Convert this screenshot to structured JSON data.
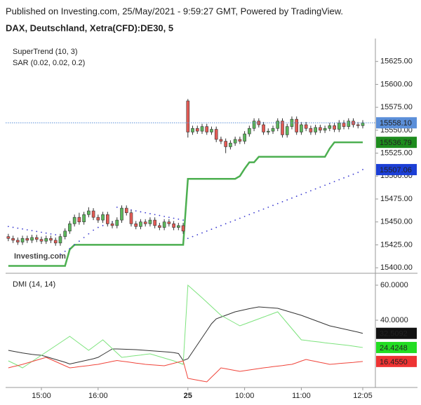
{
  "header": "Published on Investing.com, 25/May/2021 - 9:59:27 GMT, Powered by TradingView.",
  "chart_data": [
    {
      "type": "candlestick",
      "title": "DAX, Deutschland, Xetra(CFD):DE30, 5",
      "watermark": "Investing.com",
      "up_color": "#5cb85c",
      "down_color": "#e45b55",
      "ohlc": [
        [
          15434,
          15437,
          15429,
          15432
        ],
        [
          15432,
          15435,
          15427,
          15430
        ],
        [
          15430,
          15433,
          15425,
          15428
        ],
        [
          15428,
          15435,
          15425,
          15432
        ],
        [
          15432,
          15435,
          15427,
          15430
        ],
        [
          15430,
          15436,
          15427,
          15433
        ],
        [
          15433,
          15436,
          15428,
          15431
        ],
        [
          15431,
          15434,
          15426,
          15429
        ],
        [
          15429,
          15435,
          15426,
          15432
        ],
        [
          15432,
          15435,
          15427,
          15430
        ],
        [
          15430,
          15433,
          15424,
          15427
        ],
        [
          15427,
          15437,
          15424,
          15434
        ],
        [
          15434,
          15443,
          15431,
          15440
        ],
        [
          15440,
          15451,
          15437,
          15448
        ],
        [
          15448,
          15458,
          15445,
          15455
        ],
        [
          15455,
          15460,
          15447,
          15450
        ],
        [
          15450,
          15461,
          15447,
          15458
        ],
        [
          15458,
          15466,
          15455,
          15462
        ],
        [
          15462,
          15465,
          15452,
          15455
        ],
        [
          15455,
          15458,
          15449,
          15452
        ],
        [
          15452,
          15461,
          15449,
          15458
        ],
        [
          15458,
          15461,
          15445,
          15448
        ],
        [
          15448,
          15451,
          15443,
          15446
        ],
        [
          15446,
          15455,
          15443,
          15452
        ],
        [
          15452,
          15468,
          15449,
          15465
        ],
        [
          15465,
          15468,
          15457,
          15460
        ],
        [
          15460,
          15463,
          15445,
          15448
        ],
        [
          15448,
          15451,
          15442,
          15445
        ],
        [
          15445,
          15453,
          15442,
          15450
        ],
        [
          15450,
          15453,
          15445,
          15448
        ],
        [
          15448,
          15455,
          15445,
          15452
        ],
        [
          15452,
          15455,
          15443,
          15446
        ],
        [
          15446,
          15449,
          15441,
          15444
        ],
        [
          15444,
          15453,
          15441,
          15450
        ],
        [
          15450,
          15453,
          15445,
          15448
        ],
        [
          15448,
          15451,
          15441,
          15444
        ],
        [
          15444,
          15449,
          15441,
          15446
        ],
        [
          15446,
          15449,
          15437,
          15440
        ],
        [
          15582,
          15584,
          15542,
          15548
        ],
        [
          15548,
          15555,
          15545,
          15552
        ],
        [
          15552,
          15555,
          15546,
          15549
        ],
        [
          15549,
          15557,
          15546,
          15554
        ],
        [
          15554,
          15557,
          15545,
          15548
        ],
        [
          15548,
          15554,
          15545,
          15551
        ],
        [
          15551,
          15554,
          15537,
          15540
        ],
        [
          15540,
          15543,
          15535,
          15538
        ],
        [
          15538,
          15541,
          15525,
          15532
        ],
        [
          15532,
          15539,
          15529,
          15536
        ],
        [
          15536,
          15543,
          15533,
          15540
        ],
        [
          15540,
          15543,
          15535,
          15538
        ],
        [
          15538,
          15549,
          15535,
          15546
        ],
        [
          15546,
          15555,
          15543,
          15552
        ],
        [
          15552,
          15563,
          15549,
          15560
        ],
        [
          15560,
          15563,
          15553,
          15556
        ],
        [
          15556,
          15559,
          15545,
          15548
        ],
        [
          15548,
          15552,
          15545,
          15549
        ],
        [
          15549,
          15555,
          15546,
          15552
        ],
        [
          15552,
          15563,
          15549,
          15560
        ],
        [
          15560,
          15563,
          15542,
          15545
        ],
        [
          15545,
          15557,
          15542,
          15554
        ],
        [
          15554,
          15565,
          15551,
          15562
        ],
        [
          15562,
          15565,
          15545,
          15548
        ],
        [
          15548,
          15559,
          15545,
          15556
        ],
        [
          15556,
          15559,
          15549,
          15552
        ],
        [
          15552,
          15555,
          15545,
          15548
        ],
        [
          15548,
          15556,
          15545,
          15553
        ],
        [
          15553,
          15556,
          15547,
          15550
        ],
        [
          15550,
          15555,
          15547,
          15552
        ],
        [
          15552,
          15558,
          15549,
          15555
        ],
        [
          15555,
          15558,
          15548,
          15551
        ],
        [
          15551,
          15561,
          15548,
          15558
        ],
        [
          15558,
          15561,
          15551,
          15554
        ],
        [
          15554,
          15563,
          15551,
          15560
        ],
        [
          15560,
          15563,
          15553,
          15556
        ],
        [
          15556,
          15559,
          15552,
          15555
        ],
        [
          15555,
          15561,
          15552,
          15558.1
        ]
      ],
      "last_label": "15558.10",
      "last_color": "#5b8fd9",
      "series": [
        {
          "name": "SuperTrend (10, 3)",
          "color": "#4caf50",
          "style": "line",
          "last_label": "15536.79",
          "label_color": "#1e8c1e",
          "values": [
            15402,
            15402,
            15402,
            15402,
            15402,
            15402,
            15402,
            15402,
            15402,
            15402,
            15402,
            15402,
            15402,
            15420,
            15425,
            15425,
            15425,
            15425,
            15425,
            15425,
            15425,
            15425,
            15425,
            15425,
            15425,
            15425,
            15425,
            15425,
            15425,
            15425,
            15425,
            15425,
            15425,
            15425,
            15425,
            15425,
            15425,
            15425,
            15497,
            15497,
            15497,
            15497,
            15497,
            15497,
            15497,
            15497,
            15497,
            15497,
            15497,
            15500,
            15508,
            15515,
            15515,
            15521,
            15521,
            15521,
            15521,
            15521,
            15521,
            15521,
            15521,
            15521,
            15521,
            15521,
            15521,
            15521,
            15521,
            15521,
            15530,
            15536.79,
            15536.79,
            15536.79,
            15536.79,
            15536.79,
            15536.79,
            15536.79
          ]
        },
        {
          "name": "SAR (0.02, 0.02, 0.2)",
          "color": "#3a3ad0",
          "style": "dots",
          "last_label": "15507.06",
          "label_color": "#1c3fd6",
          "values": [
            15445,
            15444.1,
            15443.2,
            15442.3,
            15441.4,
            15440.5,
            15439.6,
            15438.7,
            15437.8,
            15436.9,
            15436,
            15415,
            15418,
            15421,
            15425,
            15429,
            15433,
            15437,
            15441,
            15444,
            15446,
            15448,
            15450,
            15466,
            15465,
            15464,
            15463,
            15462,
            15461,
            15460,
            15459,
            15458,
            15457,
            15456,
            15455,
            15454,
            15453,
            15452,
            15432,
            15434,
            15436,
            15438,
            15440,
            15442,
            15444,
            15446,
            15448,
            15450,
            15452,
            15454,
            15456,
            15458,
            15460,
            15462,
            15464,
            15466,
            15468,
            15470,
            15472,
            15474,
            15476,
            15478,
            15480,
            15482,
            15484,
            15486,
            15488,
            15490,
            15492,
            15494,
            15496,
            15498,
            15500,
            15502,
            15504,
            15507.06
          ]
        }
      ],
      "ylim": [
        15394,
        15650
      ],
      "yticks": [
        {
          "value": 15400,
          "label": "15400.00"
        },
        {
          "value": 15425,
          "label": "15425.00"
        },
        {
          "value": 15450,
          "label": "15450.00"
        },
        {
          "value": 15475,
          "label": "15475.00"
        },
        {
          "value": 15500,
          "label": "15500.00"
        },
        {
          "value": 15525,
          "label": "15525.00"
        },
        {
          "value": 15550,
          "label": "15550.00"
        },
        {
          "value": 15575,
          "label": "15575.00"
        },
        {
          "value": 15600,
          "label": "15600.00"
        },
        {
          "value": 15625,
          "label": "15625.00"
        }
      ],
      "legend": "top-left"
    },
    {
      "type": "line",
      "title": "DMI (14, 14)",
      "categories": [
        null,
        null,
        null,
        null,
        null,
        null,
        null,
        "15:00",
        null,
        null,
        null,
        null,
        null,
        null,
        null,
        null,
        null,
        null,
        null,
        "16:00",
        null,
        null,
        null,
        null,
        null,
        null,
        null,
        null,
        null,
        null,
        null,
        null,
        null,
        null,
        null,
        null,
        null,
        null,
        "25",
        null,
        null,
        null,
        null,
        null,
        null,
        null,
        null,
        null,
        null,
        null,
        "10:00",
        null,
        null,
        null,
        null,
        null,
        null,
        null,
        null,
        null,
        null,
        null,
        "11:00",
        null,
        null,
        null,
        null,
        null,
        null,
        null,
        null,
        null,
        null,
        null,
        null,
        "12:05"
      ],
      "series": [
        {
          "color": "#333333",
          "last_label": "32.5092",
          "label_color": "#111111",
          "label_text": "#ffffff",
          "values": [
            22.8,
            22.3,
            21.8,
            21.3,
            20.9,
            20.5,
            20.2,
            20,
            19.2,
            18.4,
            17.6,
            16.8,
            16,
            15,
            15.6,
            16.2,
            16.8,
            17.4,
            18,
            18.8,
            20.4,
            22,
            23.6,
            23.6,
            23.5,
            23.4,
            23.3,
            23.2,
            23,
            22.8,
            22.6,
            22.4,
            22.2,
            22,
            21.8,
            21.5,
            21,
            17,
            18,
            22,
            26,
            30,
            34,
            38,
            40.8,
            41.8,
            42.8,
            43.8,
            44.8,
            45.4,
            46,
            46.6,
            47.1,
            47.6,
            47.4,
            47.2,
            47,
            46.8,
            46,
            45.2,
            44.4,
            43.6,
            42.8,
            41.8,
            40.8,
            39.8,
            38.8,
            37.8,
            36.8,
            36.2,
            35.6,
            35,
            34.4,
            33.8,
            33.2,
            32.5092
          ]
        },
        {
          "color": "#7de37d",
          "last_label": "24.4248",
          "label_color": "#22dd22",
          "label_text": "#111111",
          "values": [
            16.8,
            15.5,
            14.2,
            12.8,
            14.6,
            16.4,
            18.2,
            20,
            21.8,
            23.6,
            25.4,
            27.2,
            29,
            30.8,
            28.8,
            26.8,
            24.8,
            22.8,
            24.8,
            26.8,
            28.8,
            26.3,
            23.8,
            21.3,
            18.8,
            19.1,
            19.5,
            19.8,
            20.1,
            20.5,
            20.8,
            20,
            19.2,
            18.4,
            17.6,
            16.8,
            15.8,
            14.8,
            60,
            57.6,
            55.2,
            52.8,
            50.3,
            47.8,
            45.3,
            42.8,
            41.3,
            39.8,
            38.3,
            36.8,
            37.8,
            38.8,
            39.8,
            40.8,
            41.8,
            42.8,
            43.8,
            44.8,
            41.6,
            38.4,
            35.2,
            32,
            28.8,
            28.5,
            28.1,
            27.8,
            27.5,
            27.1,
            26.8,
            26.5,
            26.2,
            25.9,
            25.6,
            25.2,
            24.8,
            24.4248
          ]
        },
        {
          "color": "#f0443a",
          "last_label": "16.4550",
          "label_color": "#ee3333",
          "label_text": "#ffffff",
          "values": [
            12.8,
            13.5,
            14.1,
            14.8,
            15.6,
            16.4,
            17.2,
            18,
            18.8,
            17.6,
            16.4,
            15.2,
            14,
            12.8,
            13.1,
            13.5,
            13.8,
            14.1,
            14.5,
            14.8,
            15.4,
            15.9,
            16.5,
            17,
            16.6,
            16.3,
            15.9,
            15.5,
            15.2,
            14.8,
            14.6,
            14.4,
            14.2,
            14,
            14.7,
            15.4,
            16.1,
            16.8,
            6.8,
            6.3,
            5.8,
            5.3,
            4.8,
            7.5,
            10.1,
            12.8,
            12.3,
            11.8,
            11.3,
            10.8,
            11.2,
            11.6,
            12,
            12.4,
            12.8,
            13.1,
            13.5,
            13.8,
            14.1,
            14.5,
            14.8,
            15.7,
            16.7,
            17.6,
            17,
            16.5,
            15.9,
            15.4,
            14.8,
            15,
            15.3,
            15.5,
            15.7,
            15.9,
            16.2,
            16.455
          ]
        }
      ],
      "ylim": [
        1.6,
        64
      ],
      "yticks": [
        {
          "value": 40,
          "label": "40.0000"
        },
        {
          "value": 60,
          "label": "60.0000"
        }
      ]
    }
  ]
}
